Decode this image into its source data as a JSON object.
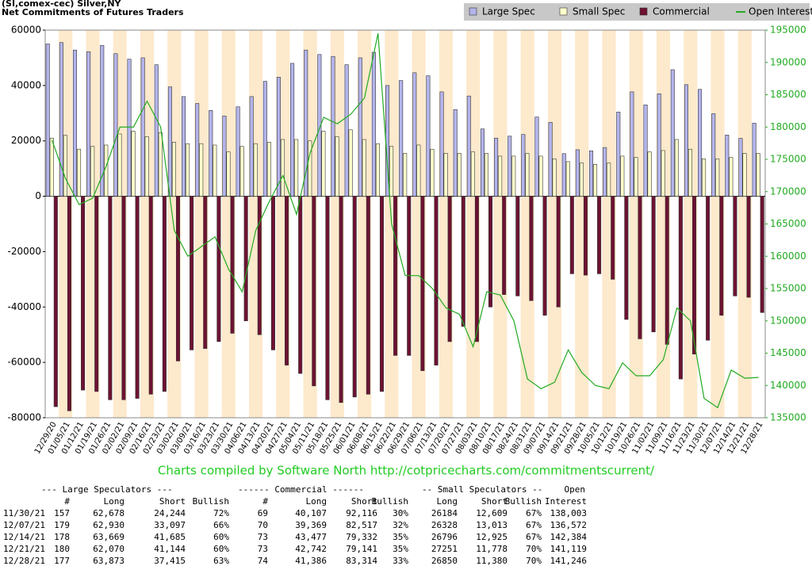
{
  "chart_data": {
    "type": "bar",
    "title": "(SI,comex-cec) Silver,NY",
    "subtitle": "Net Commitments of Futures Traders",
    "legend": "top-right",
    "categories": [
      "12/29/20",
      "01/05/21",
      "01/12/21",
      "01/19/21",
      "01/26/21",
      "02/02/21",
      "02/09/21",
      "02/16/21",
      "02/23/21",
      "03/02/21",
      "03/09/21",
      "03/16/21",
      "03/23/21",
      "03/30/21",
      "04/06/21",
      "04/13/21",
      "04/20/21",
      "04/27/21",
      "05/04/21",
      "05/11/21",
      "05/18/21",
      "05/25/21",
      "06/01/21",
      "06/08/21",
      "06/15/21",
      "06/22/21",
      "06/29/21",
      "07/06/21",
      "07/13/21",
      "07/20/21",
      "07/27/21",
      "08/03/21",
      "08/10/21",
      "08/17/21",
      "08/24/21",
      "08/31/21",
      "09/07/21",
      "09/14/21",
      "09/21/21",
      "09/28/21",
      "10/05/21",
      "10/12/21",
      "10/19/21",
      "10/26/21",
      "11/02/21",
      "11/09/21",
      "11/16/21",
      "11/23/21",
      "11/30/21",
      "12/07/21",
      "12/14/21",
      "12/21/21",
      "12/28/21"
    ],
    "series": [
      {
        "name": "Large Spec",
        "color": "#b4b4ec",
        "values": [
          55000,
          55500,
          52800,
          52200,
          54500,
          51500,
          49500,
          50000,
          47500,
          39500,
          36000,
          33500,
          31000,
          29000,
          32300,
          36000,
          41500,
          43000,
          48000,
          52800,
          51200,
          50500,
          47500,
          50000,
          52000,
          40000,
          41800,
          44600,
          43500,
          37700,
          31300,
          36200,
          24300,
          21000,
          21700,
          22300,
          28600,
          26700,
          15400,
          16800,
          16400,
          17600,
          30400,
          37700,
          33000,
          37000,
          45700,
          40300,
          38600,
          29800,
          22100,
          20900,
          26400
        ]
      },
      {
        "name": "Small Spec",
        "color": "#ffffcc",
        "values": [
          21000,
          22000,
          17000,
          18000,
          18500,
          22500,
          23500,
          21500,
          23000,
          19500,
          19000,
          19000,
          18500,
          16000,
          18000,
          19000,
          19500,
          20500,
          20500,
          20000,
          23500,
          21500,
          24000,
          20500,
          19000,
          18000,
          15500,
          18500,
          17000,
          15500,
          15500,
          16000,
          15500,
          14500,
          14500,
          15500,
          14500,
          13500,
          12500,
          12000,
          11500,
          12000,
          14500,
          14000,
          16000,
          16500,
          20500,
          17000,
          13500,
          13500,
          14000,
          15500,
          15500
        ]
      },
      {
        "name": "Commercial",
        "color": "#6e1232",
        "values": [
          -76000,
          -77500,
          -70000,
          -70500,
          -73500,
          -73500,
          -73000,
          -71500,
          -70500,
          -59500,
          -55500,
          -55000,
          -52500,
          -49500,
          -45000,
          -50000,
          -55500,
          -61000,
          -64000,
          -68500,
          -73500,
          -74500,
          -72500,
          -71500,
          -70500,
          -57500,
          -57500,
          -63000,
          -61000,
          -52500,
          -47000,
          -52500,
          -40000,
          -35500,
          -36000,
          -37700,
          -43000,
          -40000,
          -28000,
          -28500,
          -28000,
          -30000,
          -44500,
          -51500,
          -49000,
          -53500,
          -66000,
          -57000,
          -52000,
          -43000,
          -36000,
          -36500,
          -42000
        ]
      },
      {
        "name": "Open Interest",
        "color": "#22aa22",
        "type": "line",
        "axis": "y2",
        "values": [
          178000,
          172000,
          168000,
          169000,
          174000,
          180000,
          180000,
          184000,
          180000,
          164000,
          160000,
          161500,
          163000,
          158000,
          154500,
          164000,
          168500,
          172500,
          166500,
          176000,
          181500,
          180500,
          182000,
          184500,
          194500,
          165000,
          157000,
          157000,
          155000,
          152000,
          151000,
          146000,
          154500,
          154000,
          150000,
          141000,
          139500,
          140500,
          145500,
          142000,
          140000,
          139500,
          143500,
          141500,
          141500,
          144000,
          152000,
          150000,
          138003,
          136572,
          142384,
          141119,
          141246
        ]
      }
    ],
    "ylim": [
      -80000,
      60000
    ],
    "yticks": [
      -80000,
      -60000,
      -40000,
      -20000,
      0,
      20000,
      40000,
      60000
    ],
    "y2lim": [
      135000,
      195000
    ],
    "y2ticks": [
      135000,
      140000,
      145000,
      150000,
      155000,
      160000,
      165000,
      170000,
      175000,
      180000,
      185000,
      190000,
      195000
    ],
    "stripe_color": "#fde9cc"
  },
  "credit": "Charts compiled by Software North  http://cotpricecharts.com/commitmentscurrent/",
  "table": {
    "group_headers": [
      "--- Large Speculators ---",
      "------ Commercial ------",
      "-- Small Speculators --",
      "Open"
    ],
    "columns": [
      "#",
      "Long",
      "Short",
      "Bullish",
      "#",
      "Long",
      "Short",
      "Bullish",
      "Long",
      "Short",
      "Bullish",
      "Interest"
    ],
    "rows": [
      [
        "11/30/21",
        "157",
        "62,678",
        "24,244",
        "72%",
        "69",
        "40,107",
        "92,116",
        "30%",
        "26184",
        "12,609",
        "67%",
        "138,003"
      ],
      [
        "12/07/21",
        "179",
        "62,930",
        "33,097",
        "66%",
        "70",
        "39,369",
        "82,517",
        "32%",
        "26328",
        "13,013",
        "67%",
        "136,572"
      ],
      [
        "12/14/21",
        "178",
        "63,669",
        "41,685",
        "60%",
        "73",
        "43,477",
        "79,332",
        "35%",
        "26796",
        "12,925",
        "67%",
        "142,384"
      ],
      [
        "12/21/21",
        "180",
        "62,070",
        "41,144",
        "60%",
        "73",
        "42,742",
        "79,141",
        "35%",
        "27251",
        "11,778",
        "70%",
        "141,119"
      ],
      [
        "12/28/21",
        "177",
        "63,873",
        "37,415",
        "63%",
        "74",
        "41,386",
        "83,314",
        "33%",
        "26850",
        "11,380",
        "70%",
        "141,246"
      ]
    ]
  }
}
